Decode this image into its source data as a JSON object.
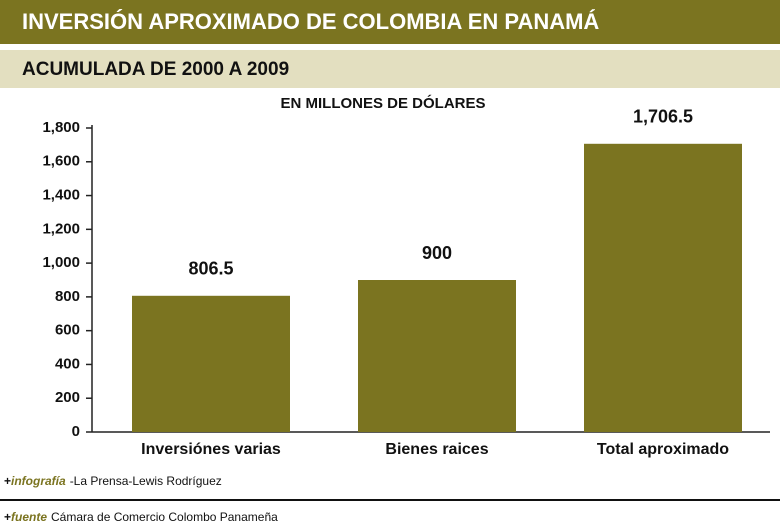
{
  "chart_data": {
    "type": "bar",
    "title": "INVERSIÓN APROXIMADO DE COLOMBIA EN PANAMÁ",
    "subtitle": "ACUMULADA DE 2000 A 2009",
    "unit_label": "EN MILLONES DE DÓLARES",
    "categories": [
      "Inversiónes varias",
      "Bienes raices",
      "Total aproximado"
    ],
    "values": [
      806.5,
      900,
      1706.5
    ],
    "value_labels": [
      "806.5",
      "900",
      "1,706.5"
    ],
    "color": "#7b7420",
    "ylim": [
      0,
      1800
    ],
    "yticks": [
      0,
      200,
      400,
      600,
      800,
      {
        "value": 1000,
        "label": "1,000"
      },
      {
        "value": 1200,
        "label": "1,200"
      },
      {
        "value": 1400,
        "label": "1,400"
      },
      {
        "value": 1600,
        "label": "1,600"
      },
      {
        "value": 1800,
        "label": "1,800"
      }
    ],
    "grid": false,
    "credits": [
      {
        "marker": "+",
        "label": "infografía",
        "text": "-La Prensa-Lewis Rodríguez"
      },
      {
        "marker": "+",
        "label": "fuente",
        "text": "Cámara de Comercio Colombo Panameña"
      }
    ]
  }
}
